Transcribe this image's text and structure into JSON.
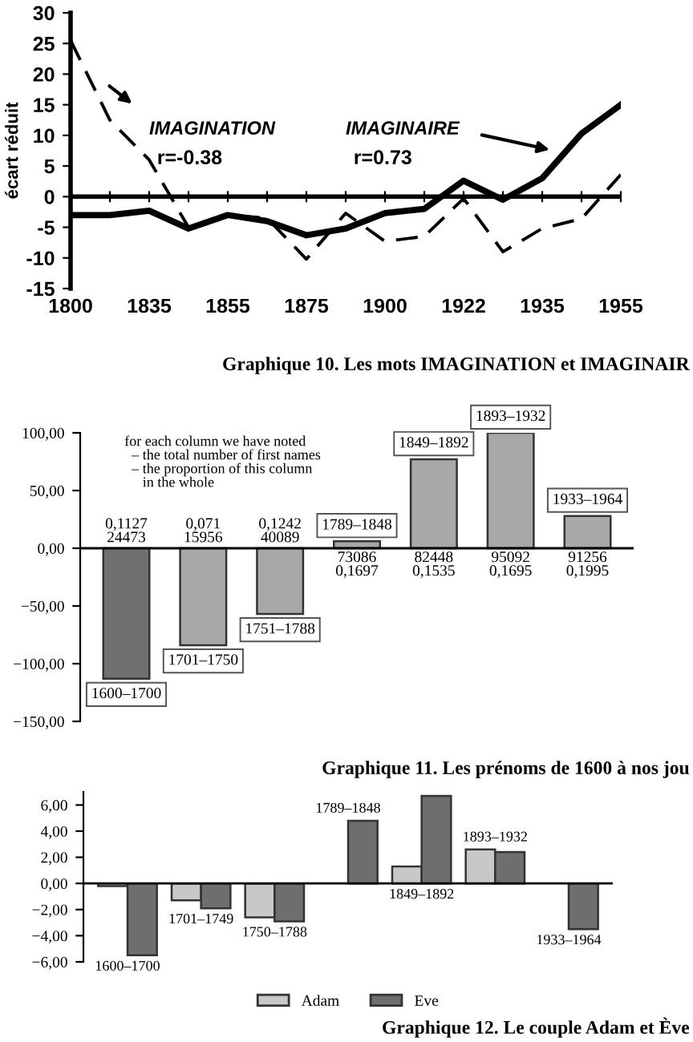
{
  "chart_data": [
    {
      "type": "line",
      "title": "Graphique 10. Les mots IMAGINATION et IMAGINAIR",
      "ylabel": "écart réduit",
      "categories": [
        "1800",
        null,
        "1835",
        null,
        "1855",
        null,
        "1875",
        null,
        "1900",
        null,
        "1922",
        null,
        "1935",
        null,
        "1955"
      ],
      "series": [
        {
          "name": "IMAGINATION",
          "color": "#000000",
          "line_style": "dashed",
          "values": [
            25.5,
            12.5,
            6,
            -5,
            -3,
            -3.5,
            -10.2,
            -2.7,
            -7.3,
            -6.5,
            -0.3,
            -9,
            -5.2,
            -3.6,
            3.6
          ]
        },
        {
          "name": "IMAGINAIRE",
          "color": "#000000",
          "line_style": "solid",
          "values": [
            -3,
            -3,
            -2.3,
            -5.2,
            -3,
            -4,
            -6.3,
            -5.2,
            -2.7,
            -2,
            2.6,
            -0.5,
            3,
            10.3,
            15
          ]
        }
      ],
      "annotations": [
        "r=-0.38",
        "r=0.73"
      ],
      "ref_lines": [
        {
          "axis": "y",
          "value": 0,
          "color": "#000000"
        }
      ],
      "ylim": [
        -15,
        30
      ],
      "yticks": [
        -15,
        -10,
        -5,
        0,
        5,
        10,
        15,
        20,
        25,
        30
      ],
      "grid": false,
      "marker": "none"
    },
    {
      "type": "bar",
      "title": "Graphique 11. Les prénoms de 1600 à nos jou",
      "categories": [
        "1600–1700",
        "1701–1750",
        "1751–1788",
        "1789–1848",
        "1849–1892",
        "1893–1932",
        "1933–1964"
      ],
      "values": [
        -113,
        -84,
        -57,
        6,
        77,
        100,
        28
      ],
      "colors": [
        "#707070",
        "#a8a8a8",
        "#a8a8a8",
        "#a8a8a8",
        "#a8a8a8",
        "#a8a8a8",
        "#a8a8a8"
      ],
      "annotations": [
        "for each column we have noted\n  – the total number of first names\n  – the proportion of this column\n     in the whole",
        "0,1127\n24473",
        "0,071\n15956",
        "0,1242\n40089",
        "73086\n0,1697",
        "82448\n0,1535",
        "95092\n0,1695",
        "91256\n0,1995"
      ],
      "ref_lines": [
        {
          "axis": "y",
          "value": 0,
          "color": "#000000"
        }
      ],
      "ylim": [
        -150,
        100
      ],
      "yticks": [
        {
          "value": -150,
          "label": "−150,00"
        },
        {
          "value": -100,
          "label": "−100,00"
        },
        {
          "value": -50,
          "label": "−50,00"
        },
        {
          "value": 0,
          "label": "0,00"
        },
        {
          "value": 50,
          "label": "50,00"
        },
        {
          "value": 100,
          "label": "100,00"
        }
      ],
      "grid": false,
      "legend": false
    },
    {
      "type": "bar",
      "title": "Graphique 12. Le couple Adam et Ève",
      "categories": [
        "1600–1700",
        "1701–1749",
        "1750–1788",
        "1789–1848",
        "1849–1892",
        "1893–1932",
        "1933–1964"
      ],
      "series": [
        {
          "name": "Adam",
          "color": "#c8c8c8",
          "values": [
            -0.2,
            -1.3,
            -2.6,
            null,
            1.3,
            2.6,
            null
          ]
        },
        {
          "name": "Eve",
          "color": "#6e6e6e",
          "values": [
            -5.5,
            -1.9,
            -2.9,
            4.8,
            6.7,
            2.4,
            -3.5
          ]
        }
      ],
      "ref_lines": [
        {
          "axis": "y",
          "value": 0,
          "color": "#000000"
        }
      ],
      "ylim": [
        -6,
        7
      ],
      "yticks": [
        {
          "value": -6,
          "label": "−6,00"
        },
        {
          "value": -4,
          "label": "−4,00"
        },
        {
          "value": -2,
          "label": "−2,00"
        },
        {
          "value": 0,
          "label": "0,00"
        },
        {
          "value": 2,
          "label": "2,00"
        },
        {
          "value": 4,
          "label": "4,00"
        },
        {
          "value": 6,
          "label": "6,00"
        }
      ],
      "grid": false,
      "legend": "bottom"
    }
  ]
}
